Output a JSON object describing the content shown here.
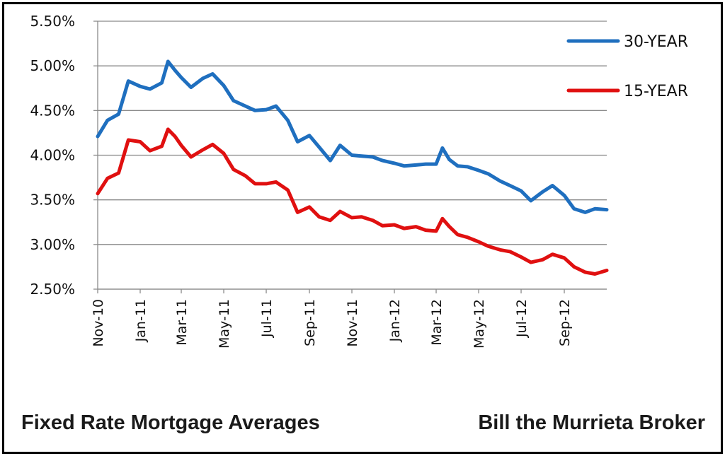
{
  "captions": {
    "left": "Fixed Rate Mortgage Averages",
    "right": "Bill the Murrieta Broker"
  },
  "chart_data": {
    "type": "line",
    "title": "",
    "xlabel": "",
    "ylabel": "",
    "ylim": [
      2.5,
      5.5
    ],
    "yticks": [
      "2.50%",
      "3.00%",
      "3.50%",
      "4.00%",
      "4.50%",
      "5.00%",
      "5.50%"
    ],
    "xticks": [
      "Nov-10",
      "Jan-11",
      "Mar-11",
      "May-11",
      "Jul-11",
      "Sep-11",
      "Nov-11",
      "Jan-12",
      "Mar-12",
      "May-12",
      "Jul-12",
      "Sep-12"
    ],
    "grid": "horizontal",
    "legend_position": "top-right",
    "x": [
      "2010-11-01",
      "2010-11-15",
      "2010-12-01",
      "2010-12-15",
      "2011-01-01",
      "2011-01-15",
      "2011-02-01",
      "2011-02-10",
      "2011-02-20",
      "2011-03-01",
      "2011-03-15",
      "2011-04-01",
      "2011-04-15",
      "2011-05-01",
      "2011-05-15",
      "2011-06-01",
      "2011-06-15",
      "2011-07-01",
      "2011-07-15",
      "2011-08-01",
      "2011-08-15",
      "2011-09-01",
      "2011-09-15",
      "2011-10-01",
      "2011-10-15",
      "2011-11-01",
      "2011-11-15",
      "2011-12-01",
      "2011-12-15",
      "2012-01-01",
      "2012-01-15",
      "2012-02-01",
      "2012-02-15",
      "2012-03-01",
      "2012-03-10",
      "2012-03-20",
      "2012-04-01",
      "2012-04-15",
      "2012-05-01",
      "2012-05-15",
      "2012-06-01",
      "2012-06-15",
      "2012-07-01",
      "2012-07-15",
      "2012-08-01",
      "2012-08-15",
      "2012-09-01",
      "2012-09-15",
      "2012-10-01",
      "2012-10-15",
      "2012-11-01"
    ],
    "series": [
      {
        "name": "30-YEAR",
        "color": "#1f6fbf",
        "values": [
          4.21,
          4.39,
          4.46,
          4.83,
          4.77,
          4.74,
          4.81,
          5.05,
          4.95,
          4.87,
          4.76,
          4.86,
          4.91,
          4.78,
          4.61,
          4.55,
          4.5,
          4.51,
          4.55,
          4.39,
          4.15,
          4.22,
          4.09,
          3.94,
          4.11,
          4.0,
          3.99,
          3.98,
          3.94,
          3.91,
          3.88,
          3.89,
          3.9,
          3.9,
          4.08,
          3.95,
          3.88,
          3.87,
          3.83,
          3.79,
          3.71,
          3.66,
          3.6,
          3.49,
          3.59,
          3.66,
          3.55,
          3.4,
          3.36,
          3.4,
          3.39
        ]
      },
      {
        "name": "15-YEAR",
        "color": "#e01010",
        "values": [
          3.57,
          3.74,
          3.8,
          4.17,
          4.15,
          4.05,
          4.1,
          4.29,
          4.21,
          4.11,
          3.98,
          4.06,
          4.12,
          4.02,
          3.84,
          3.77,
          3.68,
          3.68,
          3.7,
          3.61,
          3.36,
          3.42,
          3.31,
          3.27,
          3.37,
          3.3,
          3.31,
          3.27,
          3.21,
          3.22,
          3.18,
          3.2,
          3.16,
          3.15,
          3.29,
          3.2,
          3.11,
          3.08,
          3.03,
          2.98,
          2.94,
          2.92,
          2.86,
          2.8,
          2.83,
          2.89,
          2.85,
          2.75,
          2.69,
          2.67,
          2.71
        ]
      }
    ]
  }
}
